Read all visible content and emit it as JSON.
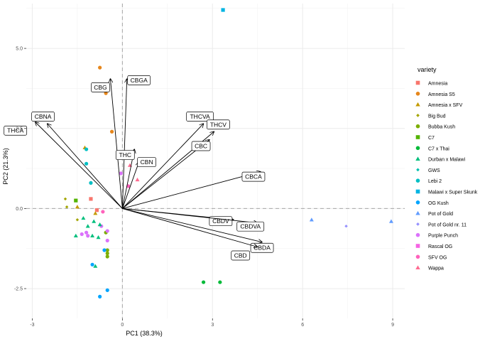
{
  "chart_data": {
    "type": "scatter",
    "subtype": "pca-biplot",
    "xlabel": "PC1 (38.3%)",
    "ylabel": "PC2 (21.3%)",
    "xlim": [
      -3.2,
      9.4
    ],
    "ylim": [
      -3.43,
      6.4
    ],
    "x_ticks": [
      -3,
      0,
      3,
      6,
      9
    ],
    "x_tick_labels": [
      "-3",
      "0",
      "3",
      "6",
      "9"
    ],
    "y_ticks": [
      -2.5,
      0,
      2.5,
      5
    ],
    "y_tick_labels": [
      "-2.5",
      "0.0",
      "2.5",
      "5.0"
    ],
    "background": "#ffffff",
    "grid": true,
    "zero_lines": true,
    "legend": {
      "title": "variety",
      "placement": "right",
      "entries": [
        {
          "name": "Amnesia",
          "color": "#F8766D",
          "shape": "square"
        },
        {
          "name": "Amnesia S5",
          "color": "#E6861B",
          "shape": "circle"
        },
        {
          "name": "Amnesia x SFV",
          "color": "#C49A00",
          "shape": "triangle"
        },
        {
          "name": "Big Bud",
          "color": "#A3A500",
          "shape": "diamond"
        },
        {
          "name": "Bubba Kush",
          "color": "#7CAE00",
          "shape": "circle"
        },
        {
          "name": "C7",
          "color": "#53B400",
          "shape": "square"
        },
        {
          "name": "C7 x Thai",
          "color": "#00BA38",
          "shape": "circle"
        },
        {
          "name": "Durban x Malawi",
          "color": "#00BF7D",
          "shape": "triangle"
        },
        {
          "name": "GWS",
          "color": "#00C0AF",
          "shape": "diamond"
        },
        {
          "name": "Lebi 2",
          "color": "#00BFC4",
          "shape": "circle"
        },
        {
          "name": "Malawi x Super Skunk",
          "color": "#00B4E2",
          "shape": "square"
        },
        {
          "name": "OG Kush",
          "color": "#00A5FF",
          "shape": "circle"
        },
        {
          "name": "Pot of Gold",
          "color": "#619CFF",
          "shape": "triangle"
        },
        {
          "name": "Pot of Gold nr. 11",
          "color": "#9590FF",
          "shape": "diamond"
        },
        {
          "name": "Purple Punch",
          "color": "#DB72FB",
          "shape": "circle"
        },
        {
          "name": "Rascal OG",
          "color": "#F564E3",
          "shape": "square"
        },
        {
          "name": "SFV OG",
          "color": "#FF62BC",
          "shape": "circle"
        },
        {
          "name": "Wappa",
          "color": "#FF6C91",
          "shape": "triangle"
        }
      ]
    },
    "loadings": [
      {
        "name": "CBGA",
        "x": 0.15,
        "y": 4.05
      },
      {
        "name": "CBG",
        "x": -0.4,
        "y": 4.05
      },
      {
        "name": "CBNA",
        "x": -2.5,
        "y": 2.65
      },
      {
        "name": "THCA",
        "x": -2.9,
        "y": 2.7
      },
      {
        "name": "THCVA",
        "x": 2.7,
        "y": 2.65
      },
      {
        "name": "THCV",
        "x": 3.05,
        "y": 2.4
      },
      {
        "name": "CBC",
        "x": 2.9,
        "y": 2.15
      },
      {
        "name": "THC",
        "x": 0.4,
        "y": 1.85
      },
      {
        "name": "CBN",
        "x": 0.55,
        "y": 1.45
      },
      {
        "name": "CBCA",
        "x": 4.6,
        "y": 1.15
      },
      {
        "name": "CBDV",
        "x": 3.7,
        "y": -0.35
      },
      {
        "name": "CBDVA",
        "x": 4.5,
        "y": -0.45
      },
      {
        "name": "CBDA",
        "x": 4.65,
        "y": -1.05
      },
      {
        "name": "CBD",
        "x": 4.5,
        "y": -1.2
      }
    ],
    "points": [
      {
        "variety": "Malawi x Super Skunk",
        "x": 3.35,
        "y": 6.2
      },
      {
        "variety": "Amnesia S5",
        "x": -0.75,
        "y": 4.4
      },
      {
        "variety": "Amnesia S5",
        "x": -0.55,
        "y": 3.6
      },
      {
        "variety": "Amnesia S5",
        "x": -0.35,
        "y": 2.4
      },
      {
        "variety": "Amnesia x SFV",
        "x": -1.25,
        "y": 1.9
      },
      {
        "variety": "Lebi 2",
        "x": -1.2,
        "y": 1.85
      },
      {
        "variety": "Lebi 2",
        "x": -1.2,
        "y": 1.4
      },
      {
        "variety": "Lebi 2",
        "x": -1.05,
        "y": 0.8
      },
      {
        "variety": "Wappa",
        "x": 0.25,
        "y": 1.35
      },
      {
        "variety": "Purple Punch",
        "x": -0.05,
        "y": 1.1
      },
      {
        "variety": "Wappa",
        "x": 0.5,
        "y": 0.9
      },
      {
        "variety": "SFV OG",
        "x": 0.2,
        "y": 0.7
      },
      {
        "variety": "Big Bud",
        "x": -1.9,
        "y": 0.3
      },
      {
        "variety": "C7",
        "x": -1.55,
        "y": 0.25
      },
      {
        "variety": "Amnesia",
        "x": -1.05,
        "y": 0.3
      },
      {
        "variety": "Big Bud",
        "x": -1.85,
        "y": 0.05
      },
      {
        "variety": "Amnesia x SFV",
        "x": -1.5,
        "y": 0.05
      },
      {
        "variety": "Amnesia",
        "x": -0.85,
        "y": -0.05
      },
      {
        "variety": "Amnesia x SFV",
        "x": -0.9,
        "y": -0.15
      },
      {
        "variety": "Durban x Malawi",
        "x": -1.3,
        "y": -0.3
      },
      {
        "variety": "Durban x Malawi",
        "x": -1.15,
        "y": -0.55
      },
      {
        "variety": "Big Bud",
        "x": -1.5,
        "y": -0.35
      },
      {
        "variety": "Durban x Malawi",
        "x": -0.95,
        "y": -0.4
      },
      {
        "variety": "SFV OG",
        "x": -0.65,
        "y": -0.1
      },
      {
        "variety": "Purple Punch",
        "x": -0.7,
        "y": -0.55
      },
      {
        "variety": "Durban x Malawi",
        "x": -0.75,
        "y": -0.5
      },
      {
        "variety": "Bubba Kush",
        "x": -0.55,
        "y": -0.75
      },
      {
        "variety": "Purple Punch",
        "x": -0.5,
        "y": -0.7
      },
      {
        "variety": "Durban x Malawi",
        "x": -1.55,
        "y": -0.85
      },
      {
        "variety": "Purple Punch",
        "x": -1.35,
        "y": -0.8
      },
      {
        "variety": "Purple Punch",
        "x": -1.2,
        "y": -0.75
      },
      {
        "variety": "Purple Punch",
        "x": -1.15,
        "y": -0.85
      },
      {
        "variety": "Durban x Malawi",
        "x": -0.8,
        "y": -0.9
      },
      {
        "variety": "Durban x Malawi",
        "x": -1.0,
        "y": -0.85
      },
      {
        "variety": "Bubba Kush",
        "x": -0.5,
        "y": -1.3
      },
      {
        "variety": "Bubba Kush",
        "x": -0.5,
        "y": -1.4
      },
      {
        "variety": "Bubba Kush",
        "x": -0.5,
        "y": -1.5
      },
      {
        "variety": "Purple Punch",
        "x": -0.5,
        "y": -1.0
      },
      {
        "variety": "OG Kush",
        "x": -0.6,
        "y": -1.3
      },
      {
        "variety": "Durban x Malawi",
        "x": -0.9,
        "y": -1.8
      },
      {
        "variety": "OG Kush",
        "x": -1.0,
        "y": -1.75
      },
      {
        "variety": "OG Kush",
        "x": -0.5,
        "y": -2.55
      },
      {
        "variety": "OG Kush",
        "x": -0.75,
        "y": -2.75
      },
      {
        "variety": "C7 x Thai",
        "x": 2.7,
        "y": -2.3
      },
      {
        "variety": "C7 x Thai",
        "x": 3.25,
        "y": -2.3
      },
      {
        "variety": "Pot of Gold",
        "x": 6.3,
        "y": -0.35
      },
      {
        "variety": "Pot of Gold nr. 11",
        "x": 7.45,
        "y": -0.55
      },
      {
        "variety": "Pot of Gold",
        "x": 8.95,
        "y": -0.4
      }
    ]
  }
}
